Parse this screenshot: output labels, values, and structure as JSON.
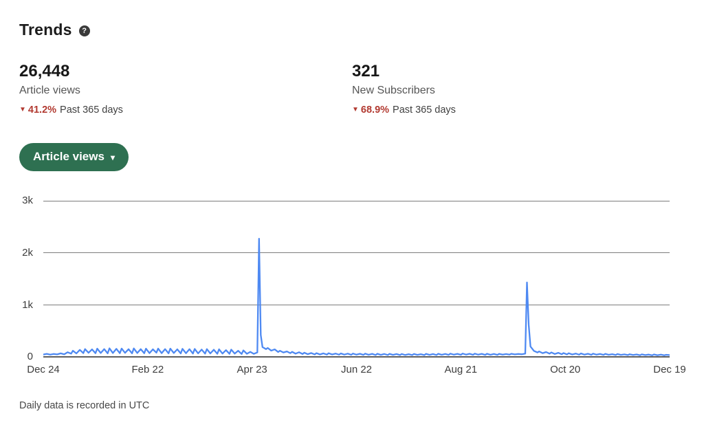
{
  "page": {
    "title": "Trends",
    "help_icon": "?",
    "footer_note": "Daily data is recorded in UTC"
  },
  "stats": [
    {
      "value": "26,448",
      "label": "Article views",
      "delta_arrow": "▼",
      "delta": "41.2%",
      "delta_direction": "down",
      "period": "Past 365 days"
    },
    {
      "value": "321",
      "label": "New Subscribers",
      "delta_arrow": "▼",
      "delta": "68.9%",
      "delta_direction": "down",
      "period": "Past 365 days"
    }
  ],
  "metric_selector": {
    "label": "Article views",
    "chevron_icon": "▾"
  },
  "colors": {
    "accent_green": "#2e7051",
    "delta_red": "#b23a31",
    "line_blue": "#4e89f2",
    "gridline_gray": "#7c7c7c"
  },
  "chart_data": {
    "type": "line",
    "title": "Article views, past 365 days",
    "xlabel": "",
    "ylabel": "",
    "ylim": [
      0,
      3000
    ],
    "xlim_days": [
      0,
      360
    ],
    "grid": "horizontal",
    "legend": "none",
    "y_tick_labels": [
      "3k",
      "2k",
      "1k",
      "0"
    ],
    "y_tick_values": [
      3000,
      2000,
      1000,
      0
    ],
    "x_tick_labels": [
      "Dec 24",
      "Feb 22",
      "Apr 23",
      "Jun 22",
      "Aug 21",
      "Oct 20",
      "Dec 19"
    ],
    "x_tick_days": [
      0,
      60,
      120,
      180,
      240,
      300,
      360
    ],
    "series": [
      {
        "name": "Article views",
        "color": "#4e89f2",
        "points": [
          [
            0,
            45
          ],
          [
            2,
            58
          ],
          [
            4,
            42
          ],
          [
            6,
            55
          ],
          [
            8,
            47
          ],
          [
            10,
            68
          ],
          [
            12,
            50
          ],
          [
            14,
            88
          ],
          [
            16,
            62
          ],
          [
            17,
            118
          ],
          [
            19,
            66
          ],
          [
            21,
            135
          ],
          [
            23,
            72
          ],
          [
            24,
            150
          ],
          [
            26,
            78
          ],
          [
            28,
            144
          ],
          [
            30,
            70
          ],
          [
            31,
            158
          ],
          [
            33,
            74
          ],
          [
            35,
            150
          ],
          [
            37,
            68
          ],
          [
            38,
            164
          ],
          [
            40,
            74
          ],
          [
            42,
            154
          ],
          [
            44,
            70
          ],
          [
            45,
            160
          ],
          [
            47,
            76
          ],
          [
            49,
            148
          ],
          [
            51,
            68
          ],
          [
            52,
            162
          ],
          [
            54,
            74
          ],
          [
            56,
            150
          ],
          [
            58,
            70
          ],
          [
            59,
            158
          ],
          [
            61,
            72
          ],
          [
            63,
            146
          ],
          [
            65,
            80
          ],
          [
            66,
            160
          ],
          [
            68,
            72
          ],
          [
            70,
            150
          ],
          [
            72,
            68
          ],
          [
            73,
            158
          ],
          [
            75,
            74
          ],
          [
            77,
            146
          ],
          [
            79,
            66
          ],
          [
            80,
            154
          ],
          [
            82,
            70
          ],
          [
            84,
            148
          ],
          [
            86,
            64
          ],
          [
            87,
            152
          ],
          [
            89,
            68
          ],
          [
            91,
            140
          ],
          [
            93,
            62
          ],
          [
            94,
            150
          ],
          [
            96,
            66
          ],
          [
            98,
            138
          ],
          [
            100,
            60
          ],
          [
            101,
            146
          ],
          [
            103,
            64
          ],
          [
            105,
            130
          ],
          [
            107,
            58
          ],
          [
            108,
            140
          ],
          [
            110,
            62
          ],
          [
            112,
            118
          ],
          [
            114,
            56
          ],
          [
            115,
            124
          ],
          [
            117,
            60
          ],
          [
            119,
            96
          ],
          [
            121,
            58
          ],
          [
            123,
            84
          ],
          [
            124,
            2270
          ],
          [
            125,
            420
          ],
          [
            126,
            188
          ],
          [
            128,
            148
          ],
          [
            129,
            172
          ],
          [
            131,
            120
          ],
          [
            133,
            144
          ],
          [
            135,
            94
          ],
          [
            136,
            118
          ],
          [
            138,
            84
          ],
          [
            140,
            104
          ],
          [
            142,
            72
          ],
          [
            143,
            96
          ],
          [
            145,
            62
          ],
          [
            147,
            88
          ],
          [
            149,
            55
          ],
          [
            150,
            80
          ],
          [
            152,
            52
          ],
          [
            154,
            74
          ],
          [
            156,
            48
          ],
          [
            157,
            72
          ],
          [
            159,
            46
          ],
          [
            161,
            68
          ],
          [
            163,
            44
          ],
          [
            164,
            70
          ],
          [
            166,
            46
          ],
          [
            168,
            64
          ],
          [
            170,
            42
          ],
          [
            171,
            66
          ],
          [
            173,
            44
          ],
          [
            175,
            62
          ],
          [
            177,
            40
          ],
          [
            178,
            64
          ],
          [
            180,
            42
          ],
          [
            182,
            60
          ],
          [
            184,
            38
          ],
          [
            185,
            62
          ],
          [
            187,
            40
          ],
          [
            189,
            58
          ],
          [
            191,
            36
          ],
          [
            192,
            60
          ],
          [
            194,
            38
          ],
          [
            196,
            56
          ],
          [
            198,
            36
          ],
          [
            199,
            58
          ],
          [
            201,
            38
          ],
          [
            203,
            54
          ],
          [
            205,
            34
          ],
          [
            206,
            56
          ],
          [
            208,
            36
          ],
          [
            210,
            52
          ],
          [
            212,
            34
          ],
          [
            213,
            56
          ],
          [
            215,
            38
          ],
          [
            217,
            52
          ],
          [
            219,
            34
          ],
          [
            220,
            58
          ],
          [
            222,
            38
          ],
          [
            224,
            54
          ],
          [
            226,
            36
          ],
          [
            227,
            60
          ],
          [
            229,
            40
          ],
          [
            231,
            56
          ],
          [
            233,
            38
          ],
          [
            234,
            62
          ],
          [
            236,
            42
          ],
          [
            238,
            58
          ],
          [
            240,
            40
          ],
          [
            241,
            64
          ],
          [
            243,
            44
          ],
          [
            245,
            60
          ],
          [
            247,
            40
          ],
          [
            248,
            62
          ],
          [
            250,
            42
          ],
          [
            252,
            58
          ],
          [
            254,
            38
          ],
          [
            255,
            60
          ],
          [
            257,
            40
          ],
          [
            259,
            56
          ],
          [
            261,
            38
          ],
          [
            262,
            58
          ],
          [
            264,
            42
          ],
          [
            266,
            54
          ],
          [
            268,
            44
          ],
          [
            269,
            60
          ],
          [
            271,
            48
          ],
          [
            273,
            55
          ],
          [
            275,
            50
          ],
          [
            277,
            62
          ],
          [
            278,
            1430
          ],
          [
            279,
            620
          ],
          [
            280,
            200
          ],
          [
            282,
            115
          ],
          [
            284,
            85
          ],
          [
            285,
            105
          ],
          [
            287,
            72
          ],
          [
            289,
            92
          ],
          [
            291,
            62
          ],
          [
            292,
            86
          ],
          [
            294,
            56
          ],
          [
            296,
            78
          ],
          [
            298,
            50
          ],
          [
            299,
            74
          ],
          [
            301,
            48
          ],
          [
            302,
            70
          ],
          [
            304,
            46
          ],
          [
            306,
            64
          ],
          [
            308,
            42
          ],
          [
            309,
            66
          ],
          [
            311,
            44
          ],
          [
            313,
            60
          ],
          [
            315,
            40
          ],
          [
            316,
            62
          ],
          [
            318,
            42
          ],
          [
            320,
            56
          ],
          [
            322,
            38
          ],
          [
            323,
            58
          ],
          [
            325,
            40
          ],
          [
            327,
            52
          ],
          [
            329,
            36
          ],
          [
            330,
            54
          ],
          [
            332,
            38
          ],
          [
            334,
            48
          ],
          [
            336,
            34
          ],
          [
            337,
            50
          ],
          [
            339,
            36
          ],
          [
            341,
            46
          ],
          [
            343,
            32
          ],
          [
            344,
            48
          ],
          [
            346,
            34
          ],
          [
            348,
            44
          ],
          [
            350,
            30
          ],
          [
            351,
            46
          ],
          [
            353,
            32
          ],
          [
            355,
            42
          ],
          [
            357,
            30
          ],
          [
            358,
            40
          ],
          [
            360,
            34
          ]
        ]
      }
    ]
  }
}
